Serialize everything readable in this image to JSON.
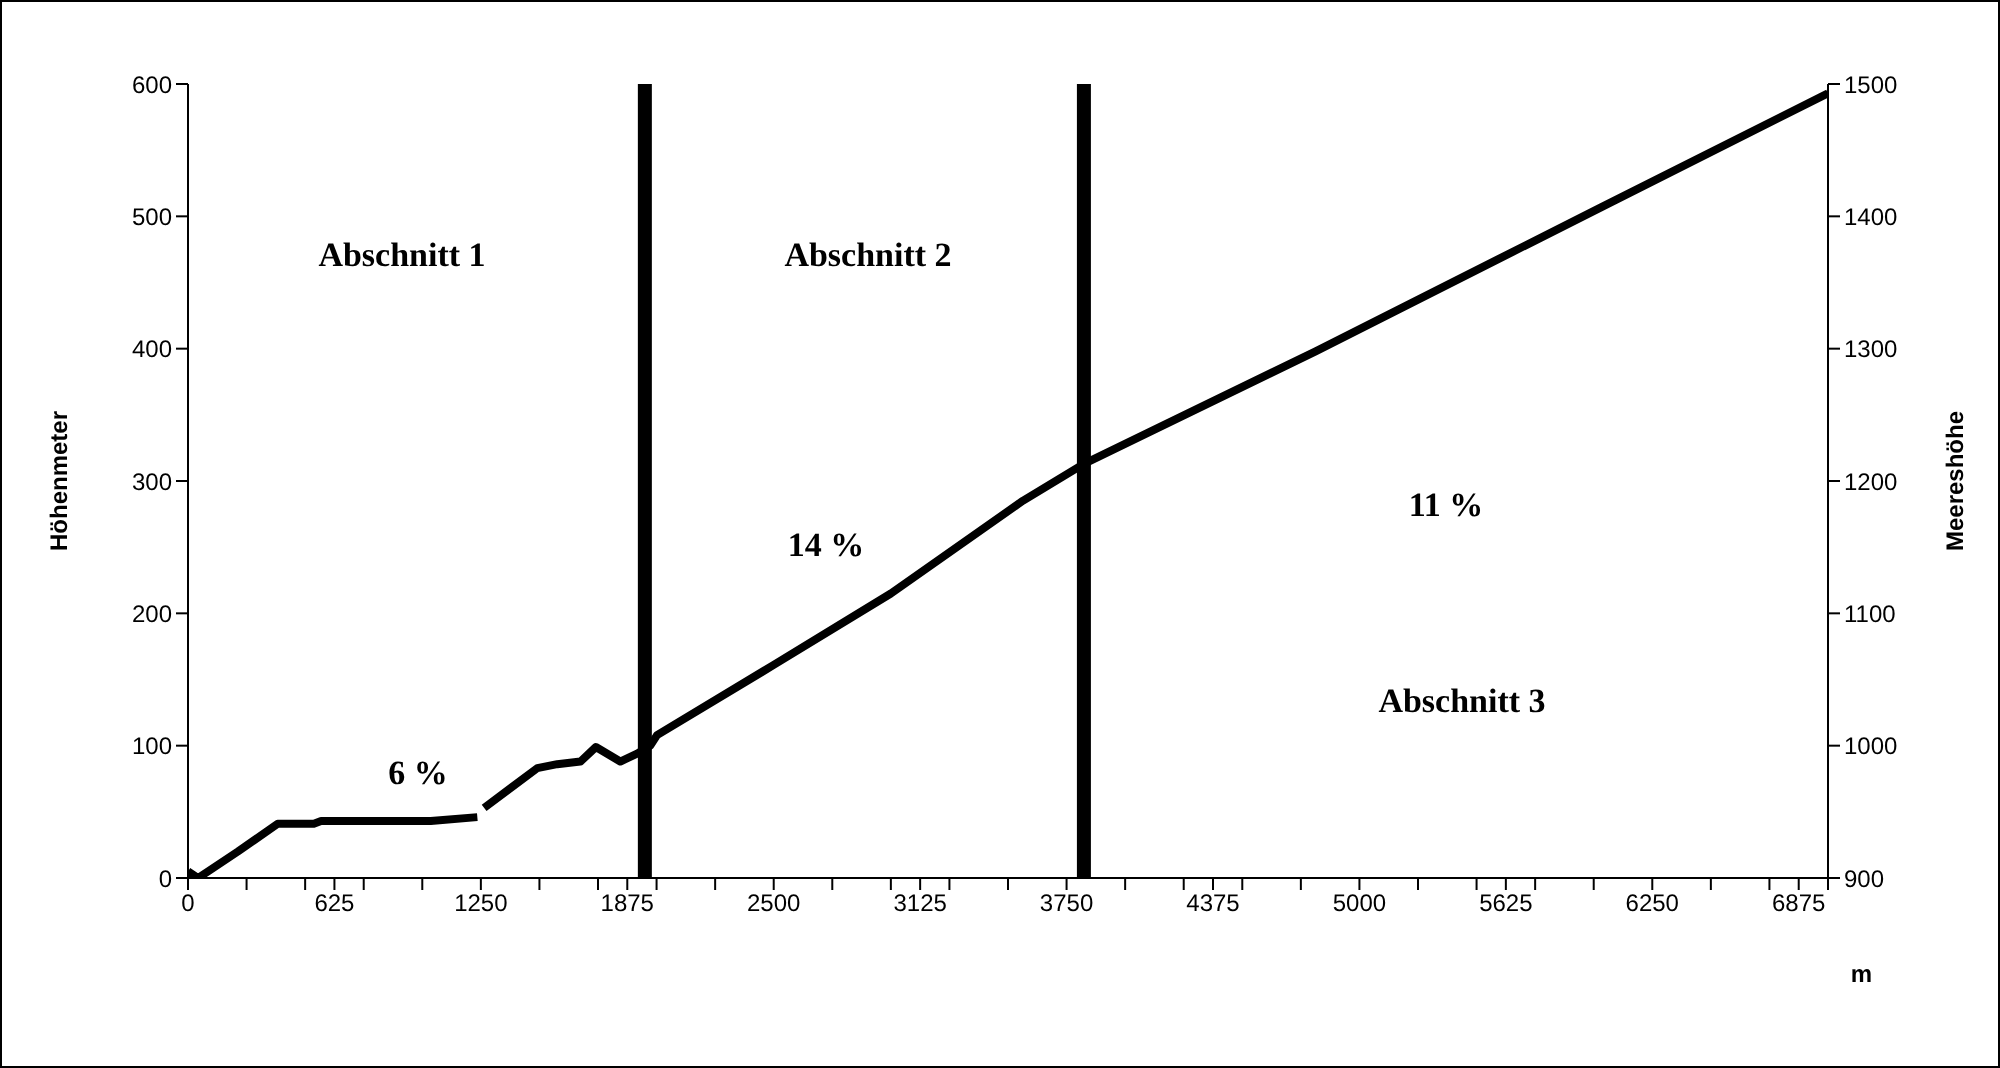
{
  "chart_data": {
    "type": "line",
    "xlabel": "m",
    "ylabel": "Höhenmeter",
    "y2label": "Meereshöhe",
    "x": [
      0,
      43,
      213,
      383,
      537,
      568,
      1036,
      1235,
      1250,
      1264,
      1491,
      1576,
      1675,
      1741,
      1845,
      1917,
      1973,
      2002,
      2500,
      3000,
      3563,
      3824,
      4813,
      6033,
      7000
    ],
    "series": [
      {
        "color": "#000000",
        "values": [
          5,
          0,
          20,
          41,
          41,
          43,
          43,
          46,
          null,
          53,
          83,
          86,
          88,
          99,
          88,
          94,
          100,
          108,
          161,
          215,
          285,
          313,
          398,
          507,
          593
        ]
      }
    ],
    "xlim": [
      0,
      7000
    ],
    "xticks": [
      0,
      {
        "value": 250,
        "label": null
      },
      {
        "value": 500,
        "label": null
      },
      625,
      {
        "value": 750,
        "label": null
      },
      {
        "value": 1000,
        "label": null
      },
      1250,
      {
        "value": 1500,
        "label": null
      },
      {
        "value": 1750,
        "label": null
      },
      1875,
      {
        "value": 2000,
        "label": null
      },
      {
        "value": 2250,
        "label": null
      },
      2500,
      {
        "value": 2750,
        "label": null
      },
      {
        "value": 3000,
        "label": null
      },
      3125,
      {
        "value": 3250,
        "label": null
      },
      {
        "value": 3500,
        "label": null
      },
      3750,
      {
        "value": 4000,
        "label": null
      },
      {
        "value": 4250,
        "label": null
      },
      4375,
      {
        "value": 4500,
        "label": null
      },
      {
        "value": 4750,
        "label": null
      },
      5000,
      {
        "value": 5250,
        "label": null
      },
      {
        "value": 5500,
        "label": null
      },
      5625,
      {
        "value": 5750,
        "label": null
      },
      {
        "value": 6000,
        "label": null
      },
      6250,
      {
        "value": 6500,
        "label": null
      },
      {
        "value": 6750,
        "label": null
      },
      6875,
      {
        "value": 7000,
        "label": null
      }
    ],
    "ylim": [
      0,
      600
    ],
    "yticks": [
      0,
      100,
      200,
      300,
      400,
      500,
      600
    ],
    "y2lim": [
      900,
      1500
    ],
    "y2ticks": [
      900,
      1000,
      1100,
      1200,
      1300,
      1400,
      1500
    ],
    "ref_lines": [
      {
        "axis": "x",
        "value": 1950,
        "color": "#000000"
      },
      {
        "axis": "x",
        "value": 3824,
        "color": "#000000"
      }
    ],
    "annotations": [
      "Abschnitt 1",
      "Abschnitt 2",
      "Abschnitt 3",
      "6 %",
      "14 %",
      "11 %"
    ],
    "grid": false,
    "marker": "none",
    "line_style": "solid"
  }
}
